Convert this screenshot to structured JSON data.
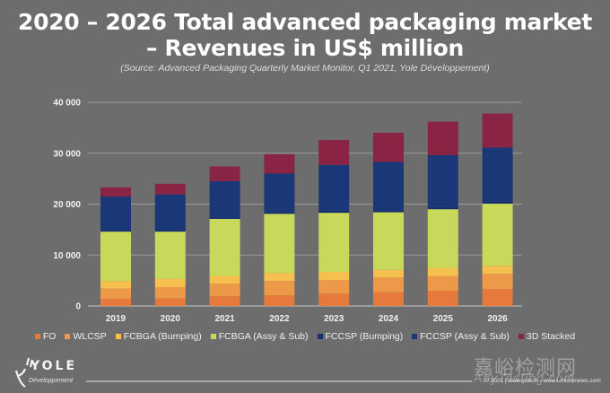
{
  "chart_data": {
    "type": "bar",
    "stacked": true,
    "title": "2020 – 2026 Total advanced packaging market – Revenues in US$ million",
    "title_lines": [
      "2020 – 2026 Total advanced packaging market",
      "– Revenues in US$ million"
    ],
    "subtitle": "(Source: Advanced Packaging Quarterly Market Monitor, Q1 2021, Yole Développement)",
    "xlabel": "",
    "ylabel": "",
    "ylim": [
      0,
      40000
    ],
    "yticks": [
      0,
      10000,
      20000,
      30000,
      40000
    ],
    "ytick_labels": [
      "0",
      "10 000",
      "20 000",
      "30 000",
      "40 000"
    ],
    "grid": true,
    "legend_position": "bottom",
    "categories": [
      "2019",
      "2020",
      "2021",
      "2022",
      "2023",
      "2024",
      "2025",
      "2026"
    ],
    "series": [
      {
        "name": "FO",
        "color": "#e57a3c",
        "values": [
          1400,
          1500,
          1900,
          2100,
          2400,
          2700,
          3000,
          3300
        ]
      },
      {
        "name": "WLCSP",
        "color": "#ec9a4a",
        "values": [
          2000,
          2200,
          2500,
          2800,
          2700,
          2900,
          2900,
          3000
        ]
      },
      {
        "name": "FCBGA (Bumping)",
        "color": "#f6c04e",
        "values": [
          1500,
          1600,
          1500,
          1600,
          1600,
          1500,
          1600,
          1600
        ]
      },
      {
        "name": "FCBGA (Assy & Sub)",
        "color": "#c7d85a",
        "values": [
          9700,
          9300,
          11200,
          11600,
          11600,
          11300,
          11500,
          12200
        ]
      },
      {
        "name": "FCCSP (Bumping)",
        "color": "#152f6e",
        "values": [
          300,
          300,
          300,
          300,
          400,
          400,
          400,
          400
        ]
      },
      {
        "name": "FCCSP (Assy & Sub)",
        "color": "#1a3777",
        "values": [
          6600,
          7000,
          7100,
          7600,
          9000,
          9500,
          10200,
          10600
        ]
      },
      {
        "name": "3D Stacked",
        "color": "#8a2445",
        "values": [
          1800,
          2100,
          2900,
          3800,
          4900,
          5700,
          6600,
          6700
        ]
      }
    ]
  },
  "logo": {
    "name": "YOLE",
    "sub": "Développement"
  },
  "footer": {
    "copyright": "© 2021 | www.yole.fr - www.i-micronews.com"
  },
  "watermark": {
    "cn": "嘉峪检测网",
    "en": "AnyTesting.com"
  }
}
